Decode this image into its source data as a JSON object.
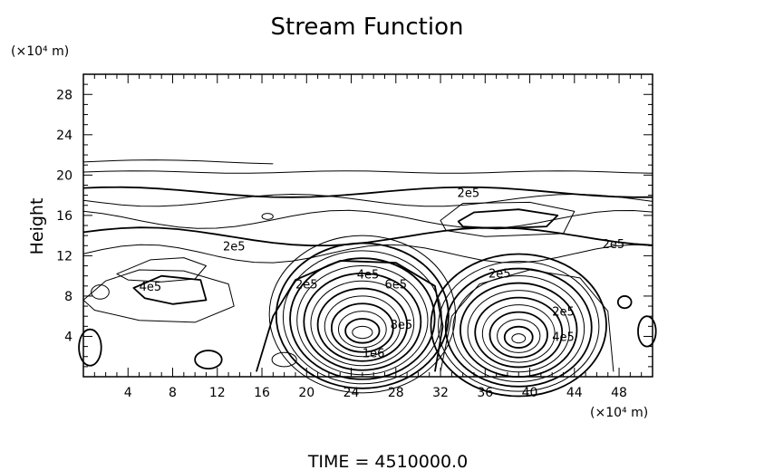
{
  "chart_data": {
    "type": "contour",
    "title": "Stream Function",
    "ylabel": "Height",
    "xunit": "(×10⁴ m)",
    "yunit": "(×10⁴ m)",
    "xlim": [
      0,
      51
    ],
    "ylim": [
      0,
      30
    ],
    "xticks": [
      4,
      8,
      12,
      16,
      20,
      24,
      28,
      32,
      36,
      40,
      44,
      48
    ],
    "yticks": [
      4,
      8,
      12,
      16,
      20,
      24,
      28
    ],
    "grid": false,
    "contour_labels": [
      {
        "text": "2e5",
        "x": 34.5,
        "y": 18.3
      },
      {
        "text": "2e5",
        "x": 13.5,
        "y": 13.0
      },
      {
        "text": "2e5",
        "x": 47.5,
        "y": 13.2
      },
      {
        "text": "4e5",
        "x": 6.0,
        "y": 9.0
      },
      {
        "text": "2e5",
        "x": 20.0,
        "y": 9.2
      },
      {
        "text": "4e5",
        "x": 25.5,
        "y": 10.2
      },
      {
        "text": "6e5",
        "x": 28.0,
        "y": 9.2
      },
      {
        "text": "8e5",
        "x": 28.5,
        "y": 5.2
      },
      {
        "text": "1e6",
        "x": 26.0,
        "y": 2.4
      },
      {
        "text": "2e5",
        "x": 37.3,
        "y": 10.3
      },
      {
        "text": "2e5",
        "x": 43.0,
        "y": 6.5
      },
      {
        "text": "4e5",
        "x": 43.0,
        "y": 4.0
      }
    ],
    "centers": [
      {
        "x": 25,
        "y": 4,
        "peak": "1e6"
      },
      {
        "x": 39,
        "y": 4,
        "peak": "8e5"
      }
    ]
  },
  "footer": "TIME  =  4510000.0"
}
